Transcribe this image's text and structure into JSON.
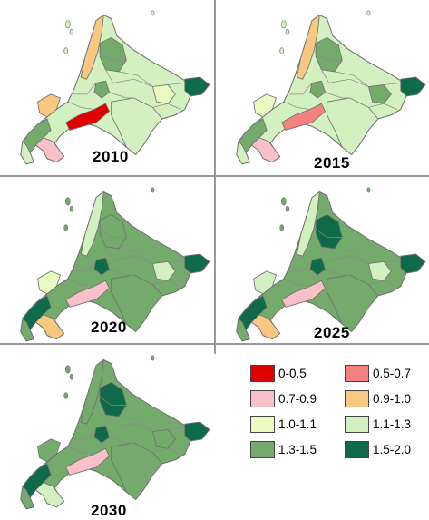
{
  "years": [
    "2010",
    "2015",
    "2020",
    "2025",
    "2030"
  ],
  "legend": [
    {
      "label": "0-0.5",
      "color": "#e00000"
    },
    {
      "label": "0.5-0.7",
      "color": "#f48080"
    },
    {
      "label": "0.7-0.9",
      "color": "#f9c0c8"
    },
    {
      "label": "0.9-1.0",
      "color": "#f8c880"
    },
    {
      "label": "1.0-1.1",
      "color": "#eafac0"
    },
    {
      "label": "1.1-1.3",
      "color": "#d3f0c0"
    },
    {
      "label": "1.3-1.5",
      "color": "#74aa6c"
    },
    {
      "label": "1.5-2.0",
      "color": "#0e6a48"
    }
  ],
  "maps": [
    {
      "year": "2010",
      "base": "1.1-1.3",
      "regions": {
        "northwest_strip": "0.9-1.0",
        "north_center": "1.3-1.5",
        "center_small": "1.3-1.5",
        "east_tip": "1.5-2.0",
        "southeast": "1.1-1.3",
        "south_belt": "0-0.5",
        "west_coast": "0.9-1.0",
        "southwest_pen": "1.3-1.5",
        "south_tip": "0.7-0.9",
        "east_mid": "1.0-1.1"
      }
    },
    {
      "year": "2015",
      "base": "1.1-1.3",
      "regions": {
        "northwest_strip": "0.9-1.0",
        "north_center": "1.3-1.5",
        "center_small": "1.3-1.5",
        "east_tip": "1.5-2.0",
        "southeast": "1.1-1.3",
        "south_belt": "0.5-0.7",
        "west_coast": "1.0-1.1",
        "southwest_pen": "1.3-1.5",
        "south_tip": "0.7-0.9",
        "east_mid": "1.3-1.5"
      }
    },
    {
      "year": "2020",
      "base": "1.3-1.5",
      "regions": {
        "northwest_strip": "1.1-1.3",
        "north_center": "1.3-1.5",
        "center_small": "1.5-2.0",
        "east_tip": "1.5-2.0",
        "southeast": "1.3-1.5",
        "south_belt": "0.7-0.9",
        "west_coast": "1.0-1.1",
        "southwest_pen": "1.5-2.0",
        "south_tip": "0.9-1.0",
        "east_mid": "1.1-1.3"
      }
    },
    {
      "year": "2025",
      "base": "1.3-1.5",
      "regions": {
        "northwest_strip": "1.1-1.3",
        "north_center": "1.5-2.0",
        "center_small": "1.5-2.0",
        "east_tip": "1.5-2.0",
        "southeast": "1.3-1.5",
        "south_belt": "0.7-0.9",
        "west_coast": "1.1-1.3",
        "southwest_pen": "1.5-2.0",
        "south_tip": "0.9-1.0",
        "east_mid": "1.1-1.3"
      }
    },
    {
      "year": "2030",
      "base": "1.3-1.5",
      "regions": {
        "northwest_strip": "1.3-1.5",
        "north_center": "1.5-2.0",
        "center_small": "1.5-2.0",
        "east_tip": "1.5-2.0",
        "southeast": "1.3-1.5",
        "south_belt": "0.7-0.9",
        "west_coast": "1.3-1.5",
        "southwest_pen": "1.5-2.0",
        "south_tip": "1.1-1.3",
        "east_mid": "1.3-1.5"
      }
    }
  ]
}
